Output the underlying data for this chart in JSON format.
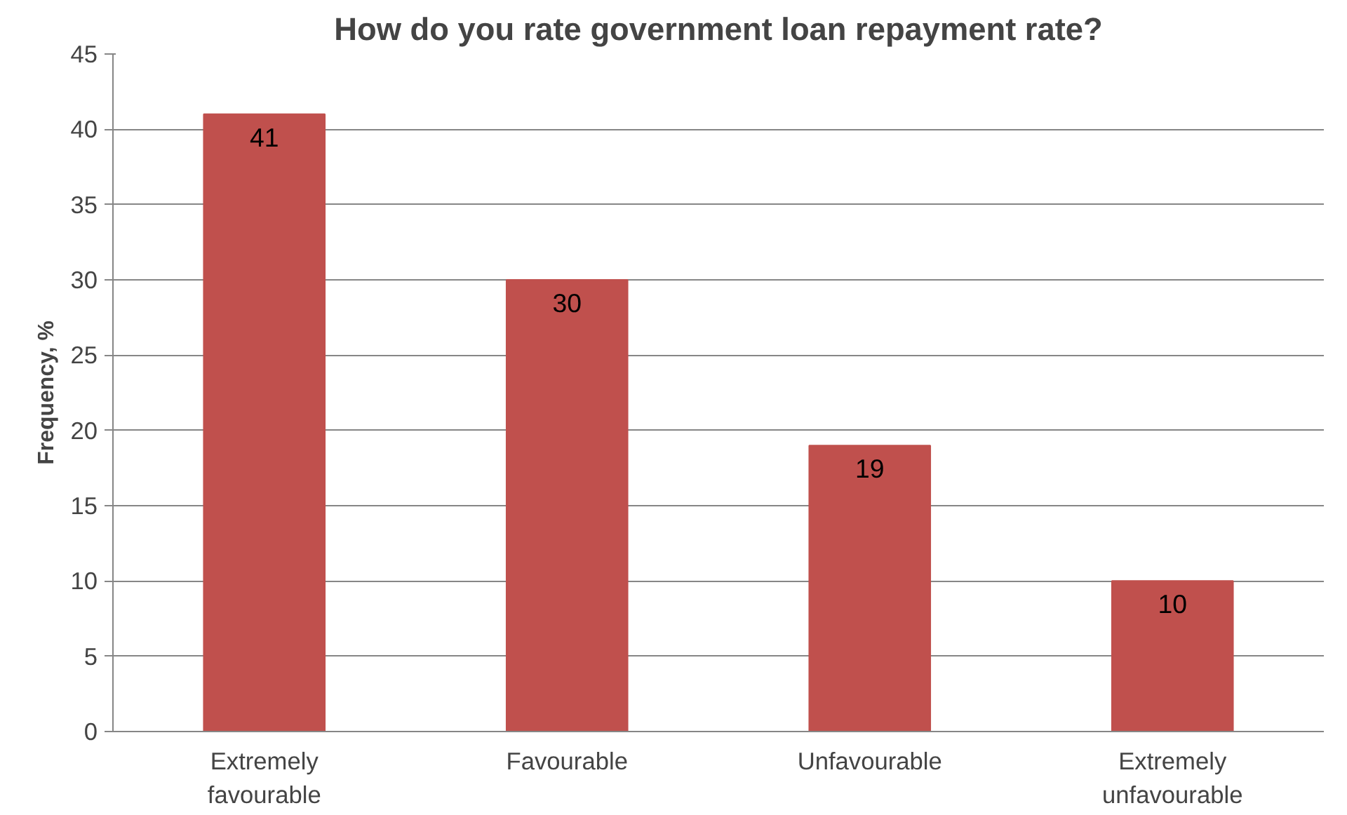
{
  "chart_data": {
    "type": "bar",
    "title": "How do you rate government loan repayment rate?",
    "ylabel": "Frequency, %",
    "categories": [
      "Extremely\nfavourable",
      "Favourable",
      "Unfavourable",
      "Extremely\nunfavourable"
    ],
    "values": [
      41,
      30,
      19,
      10
    ],
    "color": "#c0504d",
    "ylim": [
      0,
      45
    ],
    "yticks": [
      0,
      5,
      10,
      15,
      20,
      25,
      30,
      35,
      40,
      45
    ],
    "grid": "y",
    "data_labels": true
  }
}
